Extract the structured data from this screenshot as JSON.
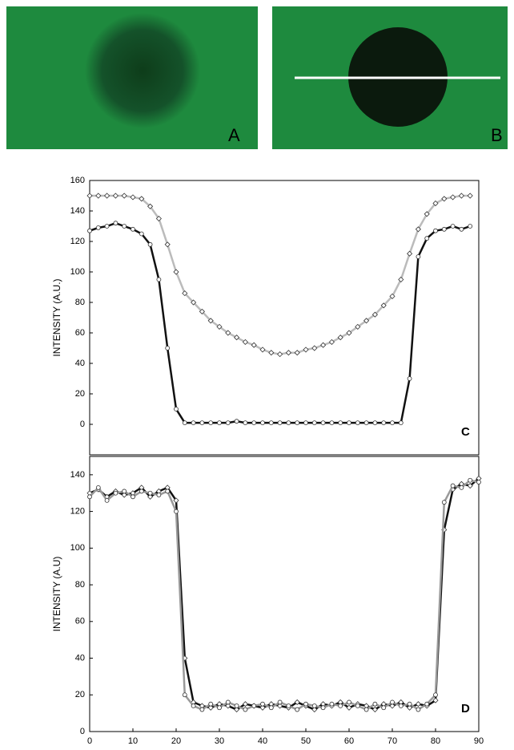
{
  "panels": [
    {
      "label": "A"
    },
    {
      "label": "B"
    }
  ],
  "chart_data": [
    {
      "type": "line",
      "panel_label": "C",
      "y_label": "INTENSITY (A.U.)",
      "x": [
        0,
        2,
        4,
        6,
        8,
        10,
        12,
        14,
        16,
        18,
        20,
        22,
        24,
        26,
        28,
        30,
        32,
        34,
        36,
        38,
        40,
        42,
        44,
        46,
        48,
        50,
        52,
        54,
        56,
        58,
        60,
        62,
        64,
        66,
        68,
        70,
        72,
        74,
        76,
        78,
        80,
        82,
        84,
        86,
        88
      ],
      "xlim": [
        0,
        90
      ],
      "ylim": [
        -20,
        160
      ],
      "yticks": [
        0,
        20,
        40,
        60,
        80,
        100,
        120,
        140,
        160
      ],
      "series": [
        {
          "color": "#bbbbbb",
          "marker": "diamond",
          "values": [
            150,
            150,
            150,
            150,
            150,
            149,
            148,
            143,
            135,
            118,
            100,
            86,
            80,
            74,
            68,
            64,
            60,
            57,
            54,
            52,
            49,
            47,
            46,
            47,
            47,
            49,
            50,
            52,
            54,
            57,
            60,
            64,
            68,
            72,
            78,
            84,
            95,
            112,
            128,
            138,
            145,
            148,
            149,
            150,
            150
          ]
        },
        {
          "color": "#111111",
          "marker": "circle",
          "values": [
            127,
            129,
            130,
            132,
            130,
            128,
            125,
            118,
            95,
            50,
            10,
            1,
            1,
            1,
            1,
            1,
            1,
            2,
            1,
            1,
            1,
            1,
            1,
            1,
            1,
            1,
            1,
            1,
            1,
            1,
            1,
            1,
            1,
            1,
            1,
            1,
            1,
            30,
            110,
            122,
            127,
            128,
            130,
            128,
            130
          ]
        }
      ]
    },
    {
      "type": "line",
      "panel_label": "D",
      "y_label": "INTENSITY (A.U)",
      "x": [
        0,
        2,
        4,
        6,
        8,
        10,
        12,
        14,
        16,
        18,
        20,
        22,
        24,
        26,
        28,
        30,
        32,
        34,
        36,
        38,
        40,
        42,
        44,
        46,
        48,
        50,
        52,
        54,
        56,
        58,
        60,
        62,
        64,
        66,
        68,
        70,
        72,
        74,
        76,
        78,
        80,
        82,
        84,
        86,
        88,
        90
      ],
      "xlim": [
        0,
        90
      ],
      "xticks": [
        0,
        10,
        20,
        30,
        40,
        50,
        60,
        70,
        80,
        90
      ],
      "ylim": [
        0,
        150
      ],
      "yticks": [
        0,
        20,
        40,
        60,
        80,
        100,
        120,
        140
      ],
      "series": [
        {
          "color": "#111111",
          "marker": "diamond",
          "values": [
            130,
            132,
            128,
            131,
            129,
            130,
            133,
            128,
            131,
            133,
            126,
            40,
            16,
            14,
            13,
            15,
            14,
            12,
            15,
            14,
            13,
            15,
            14,
            13,
            16,
            14,
            12,
            15,
            14,
            16,
            13,
            15,
            14,
            12,
            15,
            14,
            16,
            13,
            15,
            14,
            17,
            110,
            132,
            135,
            134,
            138
          ]
        },
        {
          "color": "#999999",
          "marker": "circle",
          "values": [
            128,
            133,
            126,
            130,
            131,
            128,
            131,
            130,
            129,
            131,
            120,
            20,
            14,
            12,
            15,
            13,
            16,
            14,
            12,
            14,
            15,
            13,
            16,
            14,
            12,
            15,
            14,
            13,
            15,
            14,
            16,
            14,
            12,
            15,
            13,
            16,
            14,
            15,
            12,
            15,
            20,
            125,
            134,
            133,
            137,
            136
          ]
        }
      ]
    }
  ]
}
